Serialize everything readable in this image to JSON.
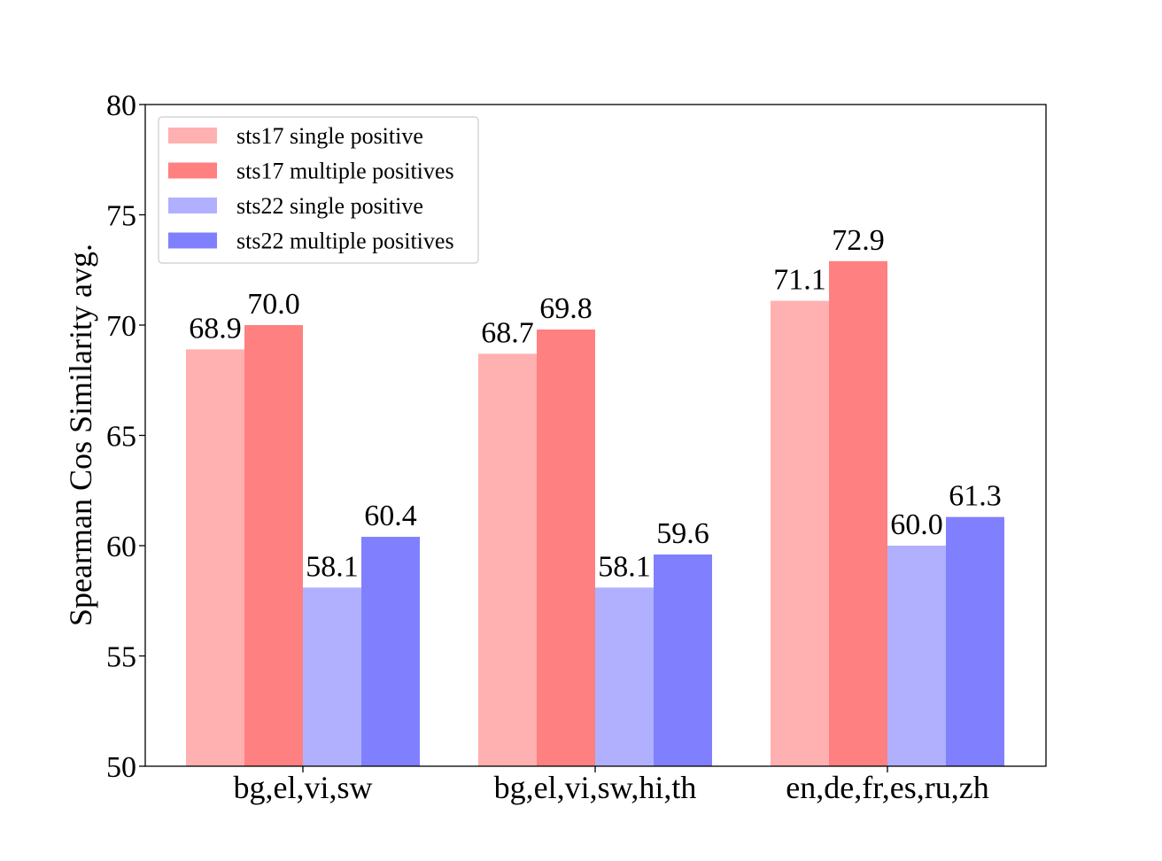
{
  "chart_data": {
    "type": "bar",
    "categories": [
      "bg,el,vi,sw",
      "bg,el,vi,sw,hi,th",
      "en,de,fr,es,ru,zh"
    ],
    "series": [
      {
        "name": "sts17 single positive",
        "color": "#ffb0b0",
        "values": [
          68.9,
          68.7,
          71.1
        ]
      },
      {
        "name": "sts17 multiple positives",
        "color": "#ff8080",
        "values": [
          70.0,
          69.8,
          72.9
        ]
      },
      {
        "name": "sts22 single positive",
        "color": "#b0b0ff",
        "values": [
          58.1,
          58.1,
          60.0
        ]
      },
      {
        "name": "sts22 multiple positives",
        "color": "#8080ff",
        "values": [
          60.4,
          59.6,
          61.3
        ]
      }
    ],
    "xlabel": "",
    "ylabel": "Spearman Cos Similarity avg.",
    "ylim": [
      50,
      80
    ],
    "yticks": [
      50,
      55,
      60,
      65,
      70,
      75,
      80
    ],
    "grid": false,
    "legend": "top-left"
  }
}
